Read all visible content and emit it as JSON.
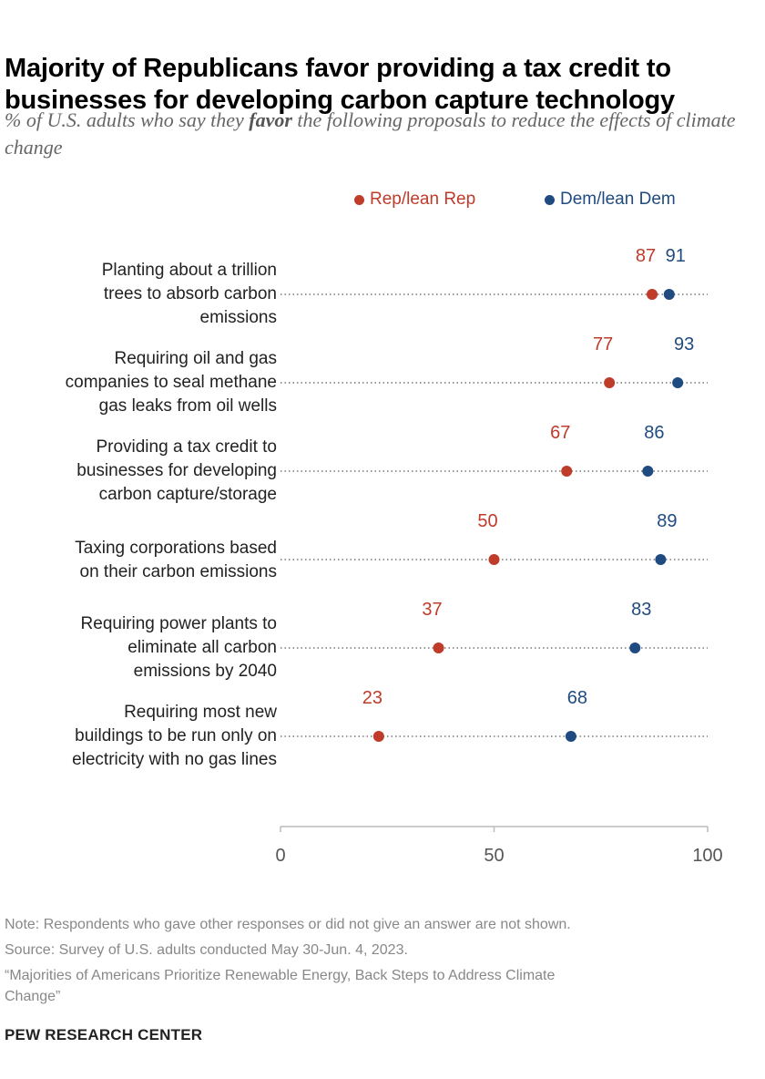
{
  "chart_data": {
    "type": "dot",
    "title": "Majority of Republicans favor providing a tax credit to businesses for developing carbon capture technology",
    "subtitle_parts": [
      "% of U.S. adults who say they ",
      "favor",
      " the following proposals to reduce the effects of climate change"
    ],
    "categories": [
      [
        "Planting about a trillion",
        "trees to absorb carbon",
        "emissions"
      ],
      [
        "Requiring oil and gas",
        "companies to seal methane",
        "gas leaks from oil wells"
      ],
      [
        "Providing a tax credit to",
        "businesses for developing",
        "carbon capture/storage"
      ],
      [
        "Taxing corporations based",
        "on their carbon emissions"
      ],
      [
        "Requiring power plants to",
        "eliminate all carbon",
        "emissions by 2040"
      ],
      [
        "Requiring most new",
        "buildings to be run only on",
        "electricity with no gas lines"
      ]
    ],
    "series": [
      {
        "name": "Rep/lean Rep",
        "color": "#bf3b2a",
        "values": [
          87,
          77,
          67,
          50,
          37,
          23
        ]
      },
      {
        "name": "Dem/lean Dem",
        "color": "#1f4b80",
        "values": [
          91,
          93,
          86,
          89,
          83,
          68
        ]
      }
    ],
    "xlim": [
      0,
      100
    ],
    "xticks": [
      "0",
      "50",
      "100"
    ],
    "legend": "top-right",
    "grid": false
  },
  "notes": {
    "note": "Note: Respondents who gave other responses or did not give an answer are not shown.",
    "source": "Source: Survey of U.S. adults conducted May 30-Jun. 4, 2023.",
    "report_line1": "“Majorities of Americans Prioritize Renewable Energy, Back Steps to Address Climate",
    "report_line2": "Change”",
    "brand": "PEW RESEARCH CENTER"
  }
}
